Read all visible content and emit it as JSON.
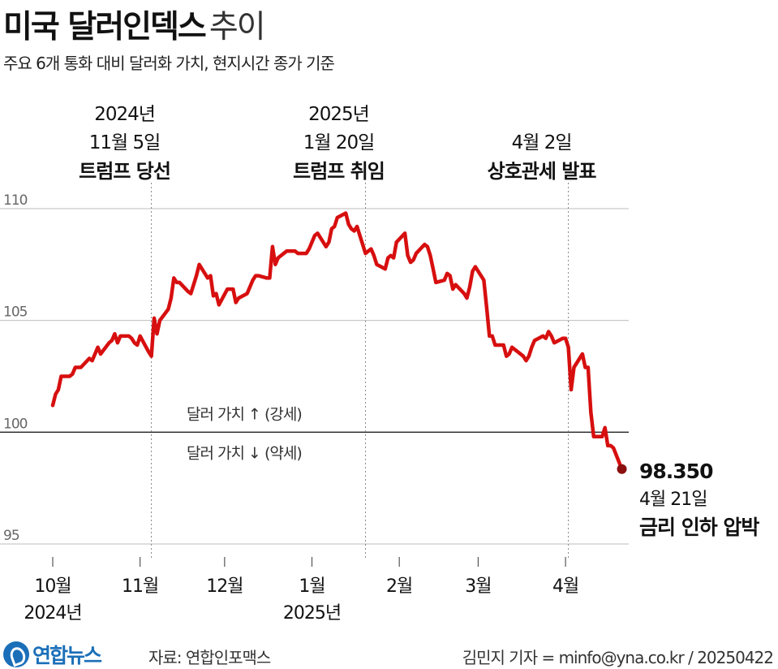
{
  "title": {
    "main": "미국 달러인덱스",
    "suffix": "추이"
  },
  "subtitle": "주요 6개 통화 대비 달러화 가치, 현지시간 종가 기준",
  "footer": {
    "logo_text": "연합뉴스",
    "source": "자료: 연합인포맥스",
    "credit": "김민지 기자 = minfo@yna.co.kr / 20250422"
  },
  "colors": {
    "line": "#d70f0f",
    "endpoint": "#8a1010",
    "grid": "#bdbdbd",
    "baseline": "#222222",
    "event_line": "#888888"
  },
  "chart_data": {
    "type": "line",
    "title": "미국 달러인덱스 추이",
    "xlabel": "",
    "ylabel": "",
    "ylim": [
      95,
      110
    ],
    "yticks": [
      95,
      100,
      105,
      110
    ],
    "baseline": 100,
    "grid": true,
    "x_ticks": [
      {
        "date": "2024-10-01",
        "label": "10월",
        "sublabel": "2024년"
      },
      {
        "date": "2024-11-01",
        "label": "11월"
      },
      {
        "date": "2024-12-01",
        "label": "12월"
      },
      {
        "date": "2025-01-01",
        "label": "1월",
        "sublabel": "2025년"
      },
      {
        "date": "2025-02-01",
        "label": "2월"
      },
      {
        "date": "2025-03-01",
        "label": "3월"
      },
      {
        "date": "2025-04-01",
        "label": "4월"
      }
    ],
    "zone_labels": {
      "above": "달러 가치 ↑ (강세)",
      "below": "달러 가치 ↓ (약세)"
    },
    "events": [
      {
        "date": "2024-11-05",
        "line1": "2024년",
        "line2": "11월 5일",
        "label": "트럼프 당선"
      },
      {
        "date": "2025-01-20",
        "line1": "2025년",
        "line2": "1월 20일",
        "label": "트럼프 취임"
      },
      {
        "date": "2025-04-02",
        "line1": "",
        "line2": "4월 2일",
        "label": "상호관세 발표"
      }
    ],
    "end_point": {
      "value": "98.350",
      "date_label": "4월 21일",
      "note": "금리 인하 압박"
    },
    "series": [
      {
        "x": [
          "2024-10-01",
          "2024-10-02",
          "2024-10-03",
          "2024-10-04",
          "2024-10-07",
          "2024-10-08",
          "2024-10-09",
          "2024-10-10",
          "2024-10-11",
          "2024-10-14",
          "2024-10-15",
          "2024-10-16",
          "2024-10-17",
          "2024-10-18",
          "2024-10-21",
          "2024-10-22",
          "2024-10-23",
          "2024-10-24",
          "2024-10-25",
          "2024-10-28",
          "2024-10-29",
          "2024-10-30",
          "2024-10-31",
          "2024-11-01",
          "2024-11-04",
          "2024-11-05",
          "2024-11-06",
          "2024-11-07",
          "2024-11-08",
          "2024-11-11",
          "2024-11-12",
          "2024-11-13",
          "2024-11-14",
          "2024-11-15",
          "2024-11-18",
          "2024-11-19",
          "2024-11-20",
          "2024-11-21",
          "2024-11-22",
          "2024-11-25",
          "2024-11-26",
          "2024-11-27",
          "2024-11-28",
          "2024-11-29",
          "2024-12-02",
          "2024-12-03",
          "2024-12-04",
          "2024-12-05",
          "2024-12-06",
          "2024-12-09",
          "2024-12-10",
          "2024-12-11",
          "2024-12-12",
          "2024-12-13",
          "2024-12-16",
          "2024-12-17",
          "2024-12-18",
          "2024-12-19",
          "2024-12-20",
          "2024-12-23",
          "2024-12-24",
          "2024-12-26",
          "2024-12-27",
          "2024-12-30",
          "2024-12-31",
          "2025-01-02",
          "2025-01-03",
          "2025-01-06",
          "2025-01-07",
          "2025-01-08",
          "2025-01-09",
          "2025-01-10",
          "2025-01-13",
          "2025-01-14",
          "2025-01-15",
          "2025-01-16",
          "2025-01-17",
          "2025-01-20",
          "2025-01-21",
          "2025-01-22",
          "2025-01-23",
          "2025-01-24",
          "2025-01-27",
          "2025-01-28",
          "2025-01-29",
          "2025-01-30",
          "2025-01-31",
          "2025-02-03",
          "2025-02-04",
          "2025-02-05",
          "2025-02-06",
          "2025-02-07",
          "2025-02-10",
          "2025-02-11",
          "2025-02-12",
          "2025-02-13",
          "2025-02-14",
          "2025-02-17",
          "2025-02-18",
          "2025-02-19",
          "2025-02-20",
          "2025-02-21",
          "2025-02-24",
          "2025-02-25",
          "2025-02-26",
          "2025-02-27",
          "2025-02-28",
          "2025-03-03",
          "2025-03-04",
          "2025-03-05",
          "2025-03-06",
          "2025-03-07",
          "2025-03-10",
          "2025-03-11",
          "2025-03-12",
          "2025-03-13",
          "2025-03-14",
          "2025-03-17",
          "2025-03-18",
          "2025-03-19",
          "2025-03-20",
          "2025-03-21",
          "2025-03-24",
          "2025-03-25",
          "2025-03-26",
          "2025-03-27",
          "2025-03-28",
          "2025-03-31",
          "2025-04-01",
          "2025-04-02",
          "2025-04-03",
          "2025-04-04",
          "2025-04-07",
          "2025-04-08",
          "2025-04-09",
          "2025-04-10",
          "2025-04-11",
          "2025-04-14",
          "2025-04-15",
          "2025-04-16",
          "2025-04-17",
          "2025-04-18",
          "2025-04-21"
        ],
        "values": [
          101.2,
          101.7,
          101.9,
          102.5,
          102.5,
          102.6,
          102.9,
          102.9,
          102.9,
          103.3,
          103.2,
          103.5,
          103.8,
          103.5,
          104.0,
          104.1,
          104.4,
          104.0,
          104.3,
          104.3,
          104.2,
          104.0,
          103.9,
          104.3,
          103.6,
          103.4,
          105.1,
          104.4,
          105.0,
          105.5,
          106.0,
          106.9,
          106.7,
          106.7,
          106.3,
          106.2,
          106.6,
          107.0,
          107.5,
          106.9,
          107.0,
          106.1,
          106.2,
          105.7,
          106.4,
          106.4,
          106.4,
          105.8,
          106.0,
          106.2,
          106.5,
          106.8,
          107.0,
          107.0,
          106.9,
          106.9,
          108.3,
          107.5,
          107.8,
          108.1,
          108.1,
          108.1,
          108.0,
          108.0,
          108.2,
          108.8,
          108.9,
          108.3,
          108.5,
          109.1,
          109.2,
          109.6,
          109.8,
          109.3,
          109.1,
          109.0,
          109.2,
          108.0,
          108.1,
          108.2,
          107.9,
          107.5,
          107.3,
          107.8,
          107.9,
          107.8,
          108.5,
          108.9,
          107.9,
          107.6,
          107.7,
          108.0,
          108.4,
          108.3,
          107.9,
          107.3,
          106.7,
          106.8,
          107.1,
          107.0,
          106.4,
          106.6,
          106.2,
          106.0,
          106.5,
          107.2,
          107.4,
          106.8,
          105.6,
          104.3,
          104.3,
          103.9,
          103.9,
          103.4,
          103.5,
          103.8,
          103.7,
          103.4,
          103.2,
          103.4,
          103.8,
          104.1,
          104.3,
          104.2,
          104.5,
          104.3,
          104.0,
          104.2,
          104.2,
          103.8,
          101.9,
          102.9,
          103.5,
          102.9,
          102.9,
          100.9,
          99.8,
          99.8,
          100.2,
          99.4,
          99.4,
          99.3,
          98.35
        ]
      }
    ]
  }
}
